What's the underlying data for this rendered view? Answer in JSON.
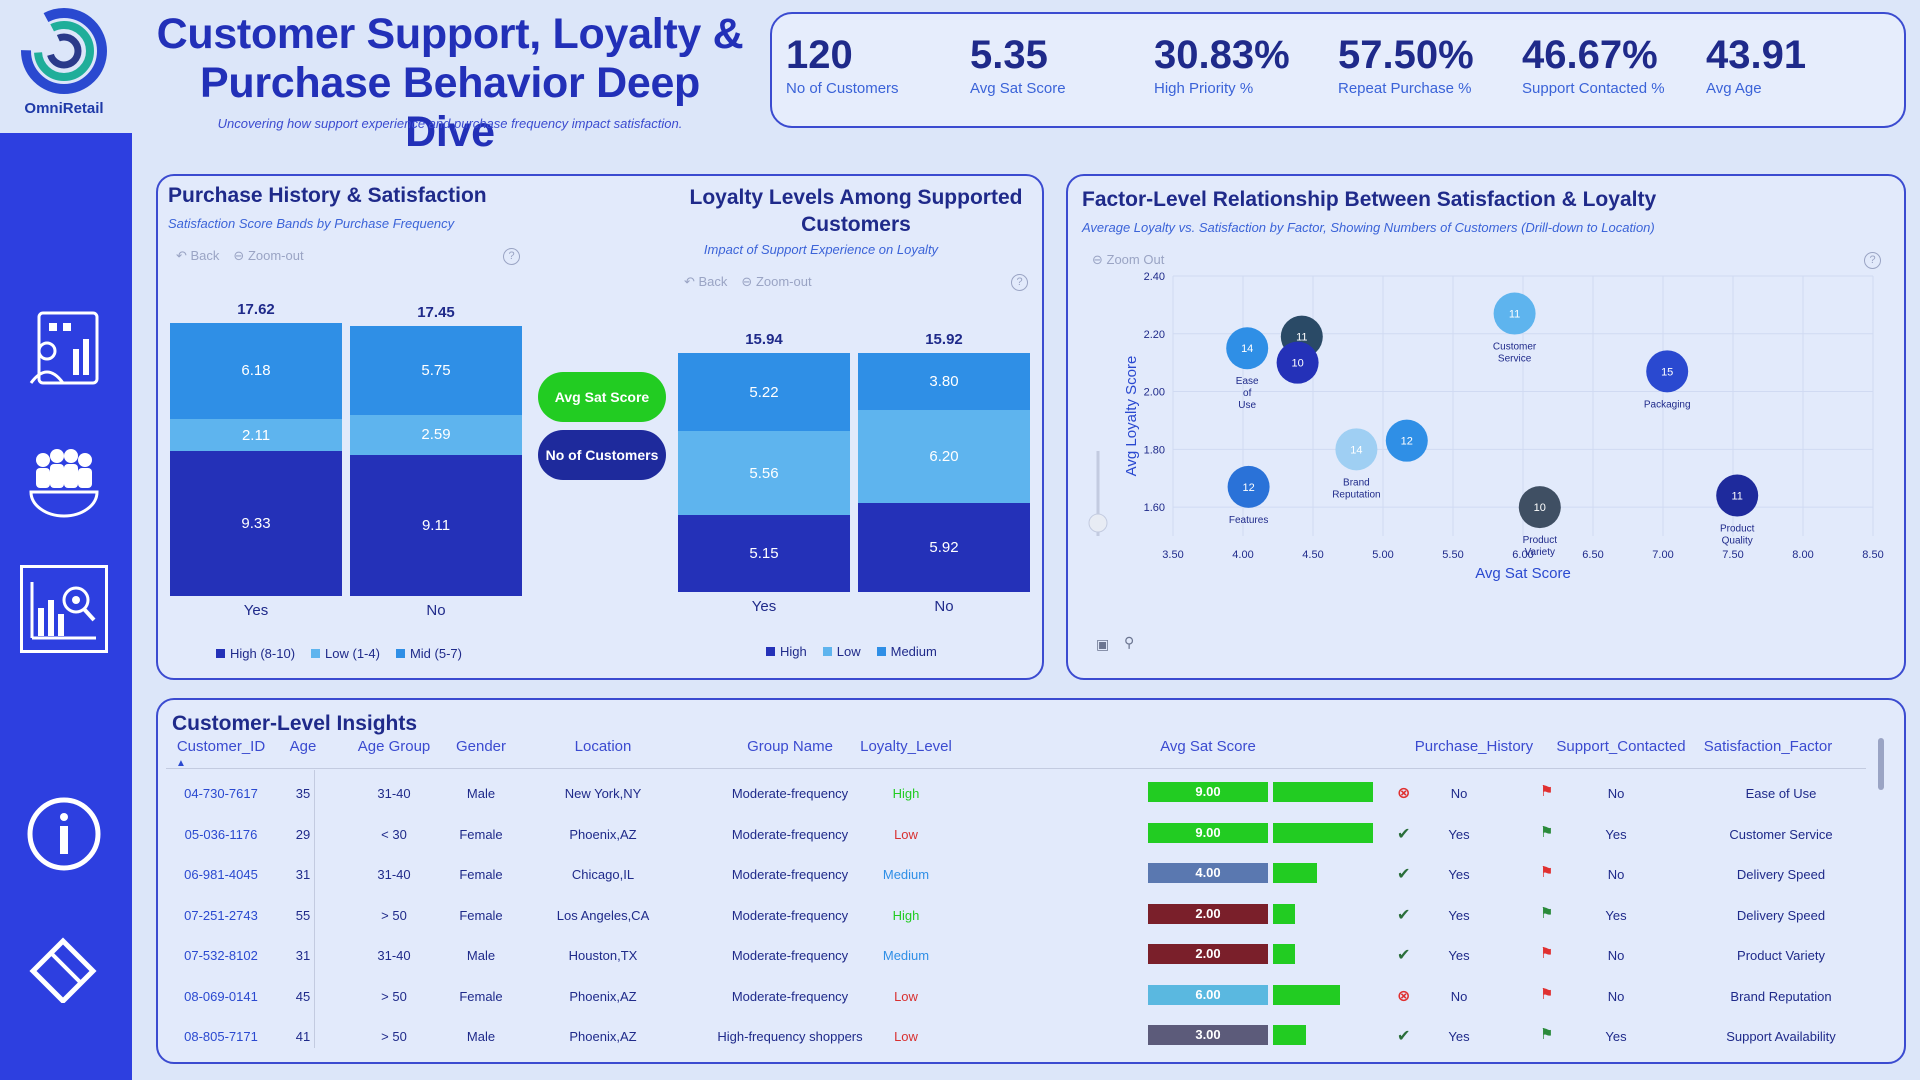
{
  "brand": {
    "name": "OmniRetail"
  },
  "header": {
    "title_line1": "Customer Support, Loyalty &",
    "title_line2": "Purchase Behavior Deep Dive",
    "subtitle": "Uncovering how support experience and purchase frequency impact satisfaction."
  },
  "nav": [
    "report-icon",
    "customers-icon",
    "analytics-icon",
    "info-icon",
    "reset-icon"
  ],
  "kpis": [
    {
      "value": "120",
      "label": "No of Customers"
    },
    {
      "value": "5.35",
      "label": "Avg Sat Score"
    },
    {
      "value": "30.83%",
      "label": "High Priority %"
    },
    {
      "value": "57.50%",
      "label": "Repeat Purchase %"
    },
    {
      "value": "46.67%",
      "label": "Support Contacted %"
    },
    {
      "value": "43.91",
      "label": "Avg Age"
    }
  ],
  "purchase_panel": {
    "title": "Purchase History & Satisfaction",
    "subtitle": "Satisfaction Score Bands by Purchase Frequency",
    "back": "Back",
    "zoom": "Zoom-out",
    "legend": [
      "High (8-10)",
      "Low (1-4)",
      "Mid (5-7)"
    ]
  },
  "toggle": {
    "primary": "Avg Sat Score",
    "secondary": "No of Customers"
  },
  "loyalty_panel": {
    "title_line1": "Loyalty Levels Among Supported",
    "title_line2": "Customers",
    "subtitle": "Impact of Support Experience on Loyalty",
    "back": "Back",
    "zoom": "Zoom-out",
    "legend": [
      "High",
      "Low",
      "Medium"
    ]
  },
  "scatter_panel": {
    "title": "Factor-Level Relationship Between Satisfaction & Loyalty",
    "subtitle": "Average Loyalty vs. Satisfaction by Factor, Showing Numbers of Customers (Drill-down to Location)",
    "zoom": "Zoom Out"
  },
  "colors": {
    "high": "#2431b8",
    "low": "#5eb4ee",
    "mid": "#2f8fe6",
    "accent": "#2d3fe0"
  },
  "chart_data": [
    {
      "type": "bar",
      "stacked": true,
      "categories": [
        "Yes",
        "No"
      ],
      "totals": [
        "17.62",
        "17.45"
      ],
      "series": [
        {
          "name": "High (8-10)",
          "values": [
            9.33,
            9.11
          ]
        },
        {
          "name": "Low (1-4)",
          "values": [
            2.11,
            2.59
          ]
        },
        {
          "name": "Mid (5-7)",
          "values": [
            6.18,
            5.75
          ]
        }
      ]
    },
    {
      "type": "bar",
      "stacked": true,
      "categories": [
        "Yes",
        "No"
      ],
      "totals": [
        "15.94",
        "15.92"
      ],
      "series": [
        {
          "name": "High",
          "values": [
            5.15,
            5.92
          ]
        },
        {
          "name": "Low",
          "values": [
            5.56,
            6.2
          ]
        },
        {
          "name": "Medium",
          "values": [
            5.22,
            3.8
          ]
        }
      ]
    },
    {
      "type": "scatter",
      "xlabel": "Avg Sat Score",
      "ylabel": "Avg Loyalty Score",
      "xlim": [
        3.5,
        8.5
      ],
      "ylim": [
        1.5,
        2.4
      ],
      "xticks": [
        "3.50",
        "4.00",
        "4.50",
        "5.00",
        "5.50",
        "6.00",
        "6.50",
        "7.00",
        "7.50",
        "8.00",
        "8.50"
      ],
      "yticks": [
        "1.60",
        "1.80",
        "2.00",
        "2.20",
        "2.40"
      ],
      "points": [
        {
          "x": 4.03,
          "y": 2.15,
          "count": "14",
          "label": "Ease of Use",
          "color": "#2f8fe6"
        },
        {
          "x": 4.42,
          "y": 2.19,
          "count": "11",
          "label": "",
          "color": "#2a4a66"
        },
        {
          "x": 4.39,
          "y": 2.1,
          "count": "10",
          "label": "",
          "color": "#2431b8"
        },
        {
          "x": 5.94,
          "y": 2.27,
          "count": "11",
          "label": "Customer Service",
          "color": "#5eb4ee"
        },
        {
          "x": 7.03,
          "y": 2.07,
          "count": "15",
          "label": "Packaging",
          "color": "#2a49d0"
        },
        {
          "x": 5.17,
          "y": 1.83,
          "count": "12",
          "label": "",
          "color": "#2f8fe6"
        },
        {
          "x": 4.81,
          "y": 1.8,
          "count": "14",
          "label": "Brand Reputation",
          "color": "#9fcff3"
        },
        {
          "x": 4.04,
          "y": 1.67,
          "count": "12",
          "label": "Features",
          "color": "#2a72d8"
        },
        {
          "x": 6.12,
          "y": 1.6,
          "count": "10",
          "label": "Product Variety",
          "color": "#3f4f63"
        },
        {
          "x": 7.53,
          "y": 1.64,
          "count": "11",
          "label": "Product Quality",
          "color": "#1e2a9c"
        }
      ]
    }
  ],
  "table": {
    "title": "Customer-Level Insights",
    "columns": [
      "Customer_ID",
      "Age",
      "Age Group",
      "Gender",
      "Location",
      "Group Name",
      "Loyalty_Level",
      "Avg Sat Score",
      "Purchase_History",
      "Support_Contacted",
      "Satisfaction_Factor"
    ],
    "rows": [
      {
        "id": "04-730-7617",
        "age": "35",
        "group": "31-40",
        "gender": "Male",
        "location": "New York,NY",
        "gname": "Moderate-frequency",
        "loyalty": "High",
        "sat": "9.00",
        "satv": 9,
        "purchase": "No",
        "support": "No",
        "factor": "Ease of Use"
      },
      {
        "id": "05-036-1176",
        "age": "29",
        "group": "< 30",
        "gender": "Female",
        "location": "Phoenix,AZ",
        "gname": "Moderate-frequency",
        "loyalty": "Low",
        "sat": "9.00",
        "satv": 9,
        "purchase": "Yes",
        "support": "Yes",
        "factor": "Customer Service"
      },
      {
        "id": "06-981-4045",
        "age": "31",
        "group": "31-40",
        "gender": "Female",
        "location": "Chicago,IL",
        "gname": "Moderate-frequency",
        "loyalty": "Medium",
        "sat": "4.00",
        "satv": 4,
        "purchase": "Yes",
        "support": "No",
        "factor": "Delivery Speed"
      },
      {
        "id": "07-251-2743",
        "age": "55",
        "group": "> 50",
        "gender": "Female",
        "location": "Los Angeles,CA",
        "gname": "Moderate-frequency",
        "loyalty": "High",
        "sat": "2.00",
        "satv": 2,
        "purchase": "Yes",
        "support": "Yes",
        "factor": "Delivery Speed"
      },
      {
        "id": "07-532-8102",
        "age": "31",
        "group": "31-40",
        "gender": "Male",
        "location": "Houston,TX",
        "gname": "Moderate-frequency",
        "loyalty": "Medium",
        "sat": "2.00",
        "satv": 2,
        "purchase": "Yes",
        "support": "No",
        "factor": "Product Variety"
      },
      {
        "id": "08-069-0141",
        "age": "45",
        "group": "> 50",
        "gender": "Female",
        "location": "Phoenix,AZ",
        "gname": "Moderate-frequency",
        "loyalty": "Low",
        "sat": "6.00",
        "satv": 6,
        "purchase": "No",
        "support": "No",
        "factor": "Brand Reputation"
      },
      {
        "id": "08-805-7171",
        "age": "41",
        "group": "> 50",
        "gender": "Male",
        "location": "Phoenix,AZ",
        "gname": "High-frequency shoppers",
        "loyalty": "Low",
        "sat": "3.00",
        "satv": 3,
        "purchase": "Yes",
        "support": "Yes",
        "factor": "Support Availability"
      }
    ]
  }
}
